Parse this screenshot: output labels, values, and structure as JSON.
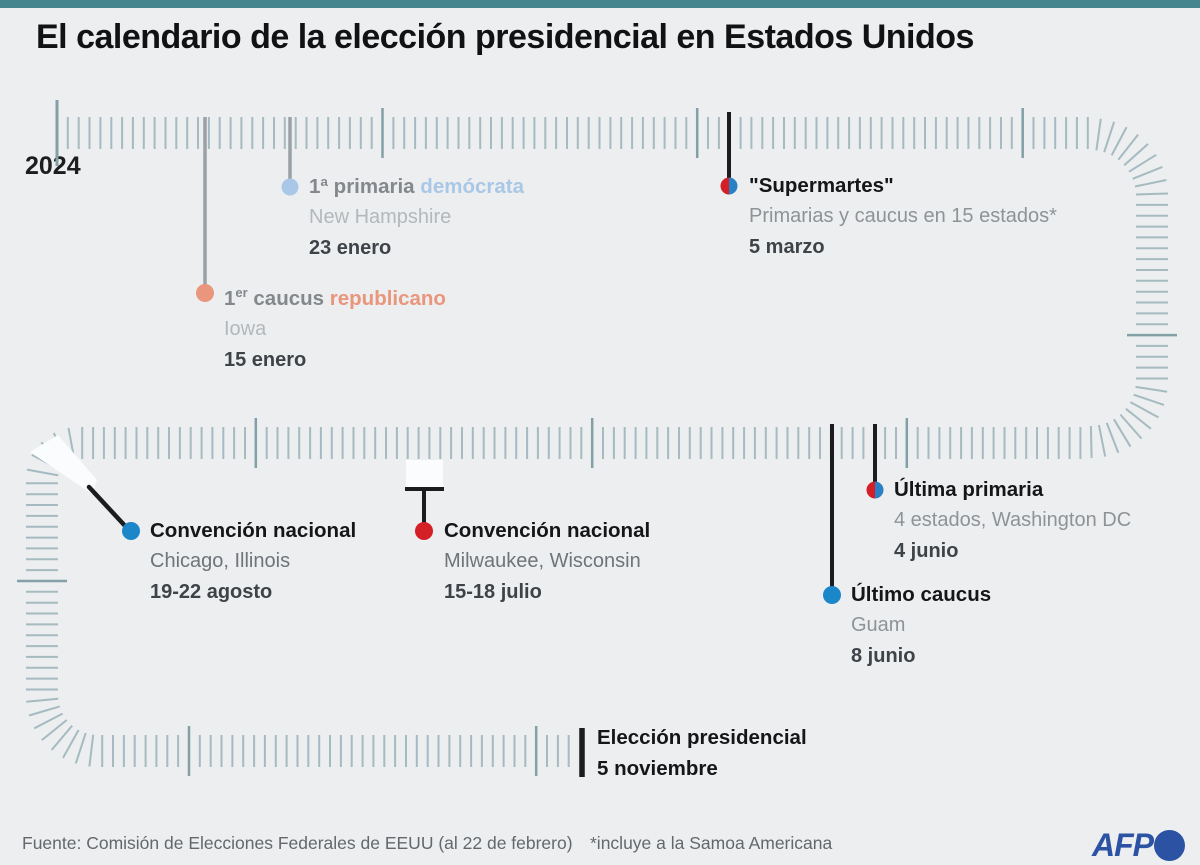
{
  "header": {
    "title": "El calendario de la elección presidencial en Estados Unidos",
    "year": "2024"
  },
  "colors": {
    "topbar_teal": "#44858e",
    "tick": "#a5bbc0",
    "tick_dark": "#82a0a6",
    "line_gray": "#9aa0a4",
    "line_black": "#1a1c1e",
    "mask_white": "#fbfcfd",
    "dem_light_blue": "#a9c7e6",
    "rep_salmon": "#e9967c",
    "red": "#d41f26",
    "blue": "#2980c4",
    "dem_blue": "#1b86c8",
    "afp_blue": "#2b52a3"
  },
  "events": {
    "primary_dem": {
      "title": "1ª primaria",
      "party": "demócrata",
      "place": "New Hampshire",
      "date": "23 enero"
    },
    "caucus_rep": {
      "num": "1",
      "sup": "er",
      "rest": " caucus",
      "party": "republicano",
      "place": "Iowa",
      "date": "15 enero"
    },
    "supertuesday": {
      "title": "\"Supermartes\"",
      "place": "Primarias y caucus en 15 estados*",
      "date": "5 marzo"
    },
    "last_primary": {
      "title": "Última primaria",
      "place": "4 estados, Washington DC",
      "date": "4 junio"
    },
    "last_caucus": {
      "title": "Último caucus",
      "place": "Guam",
      "date": "8 junio"
    },
    "convention_dem": {
      "title": "Convención nacional",
      "place": "Chicago, Illinois",
      "date": "19-22 agosto"
    },
    "convention_rep": {
      "title": "Convención nacional",
      "place": "Milwaukee, Wisconsin",
      "date": "15-18 julio"
    },
    "election": {
      "title": "Elección presidencial",
      "date": "5 noviembre"
    }
  },
  "footer": {
    "source": "Fuente: Comisión de Elecciones Federales de EEUU (al 22 de febrero)",
    "note": "*incluye a la Samoa Americana",
    "brand": "AFP"
  }
}
